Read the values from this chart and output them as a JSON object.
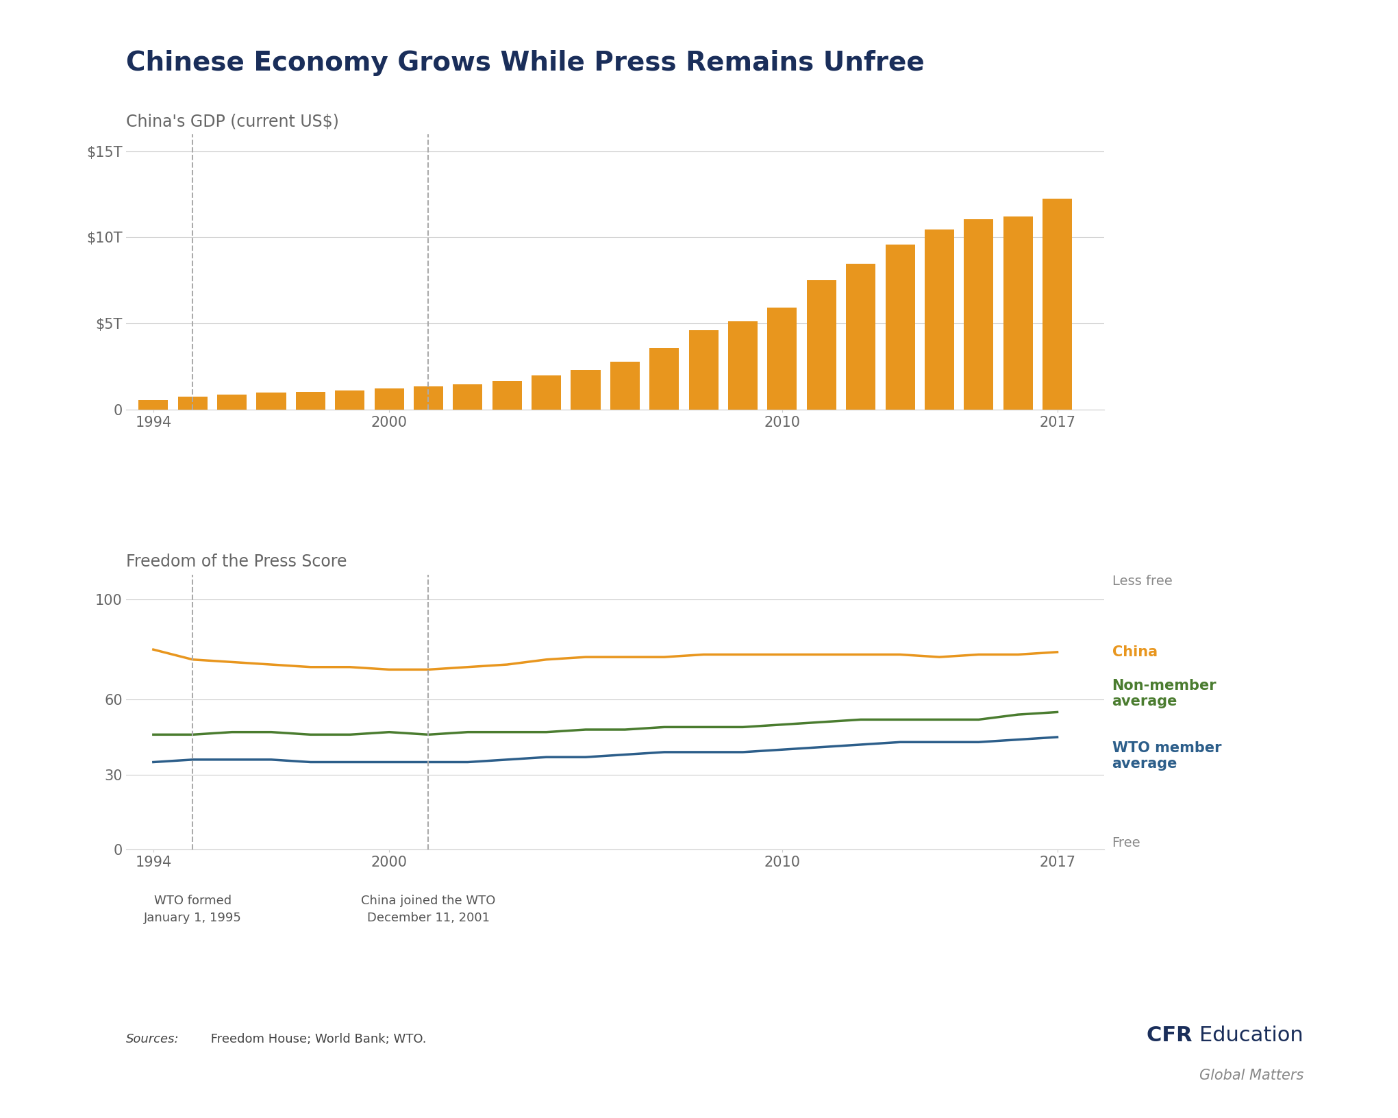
{
  "title": "Chinese Economy Grows While Press Remains Unfree",
  "title_color": "#1a2e5a",
  "title_fontsize": 28,
  "background_color": "#ffffff",
  "gdp_ylabel": "China's GDP (current US$)",
  "gdp_years": [
    1994,
    1995,
    1996,
    1997,
    1998,
    1999,
    2000,
    2001,
    2002,
    2003,
    2004,
    2005,
    2006,
    2007,
    2008,
    2009,
    2010,
    2011,
    2012,
    2013,
    2014,
    2015,
    2016,
    2017
  ],
  "gdp_values": [
    559,
    734,
    863,
    961,
    1029,
    1094,
    1211,
    1339,
    1471,
    1661,
    1955,
    2286,
    2752,
    3550,
    4598,
    5101,
    5931,
    7492,
    8461,
    9570,
    10476,
    11065,
    11199,
    12238
  ],
  "gdp_bar_color": "#E8961E",
  "gdp_ylim": [
    0,
    16000
  ],
  "gdp_yticks": [
    0,
    5000,
    10000,
    15000
  ],
  "gdp_ytick_labels": [
    "0",
    "$5T",
    "$10T",
    "$15T"
  ],
  "press_ylabel": "Freedom of the Press Score",
  "press_years": [
    1994,
    1995,
    1996,
    1997,
    1998,
    1999,
    2000,
    2001,
    2002,
    2003,
    2004,
    2005,
    2006,
    2007,
    2008,
    2009,
    2010,
    2011,
    2012,
    2013,
    2014,
    2015,
    2016,
    2017
  ],
  "china_press": [
    80,
    76,
    75,
    74,
    73,
    73,
    72,
    72,
    73,
    74,
    76,
    77,
    77,
    77,
    78,
    78,
    78,
    78,
    78,
    78,
    77,
    78,
    78,
    79
  ],
  "nonmember_press": [
    46,
    46,
    47,
    47,
    46,
    46,
    47,
    46,
    47,
    47,
    47,
    48,
    48,
    49,
    49,
    49,
    50,
    51,
    52,
    52,
    52,
    52,
    54,
    55
  ],
  "wto_member_press": [
    35,
    36,
    36,
    36,
    35,
    35,
    35,
    35,
    35,
    36,
    37,
    37,
    38,
    39,
    39,
    39,
    40,
    41,
    42,
    43,
    43,
    43,
    44,
    45
  ],
  "press_ylim": [
    0,
    110
  ],
  "press_yticks": [
    0,
    30,
    60,
    100
  ],
  "press_ytick_labels": [
    "0",
    "30",
    "60",
    "100"
  ],
  "china_color": "#E8961E",
  "nonmember_color": "#4a7c2f",
  "wto_member_color": "#2c5e8a",
  "vline1_year": 1995,
  "vline2_year": 2001,
  "vline_color": "#aaaaaa",
  "vline1_label1": "WTO formed",
  "vline1_label2": "January 1, 1995",
  "vline2_label1": "China joined the WTO",
  "vline2_label2": "December 11, 2001",
  "less_free_label": "Less free",
  "free_label": "Free",
  "china_legend": "China",
  "nonmember_legend": "Non-member\naverage",
  "wto_legend": "WTO member\naverage",
  "source_italic": "Sources:",
  "source_rest": " Freedom House; World Bank; WTO.",
  "cfr_bold": "CFR ",
  "cfr_regular": "Education",
  "cfr_sub": "Global Matters"
}
